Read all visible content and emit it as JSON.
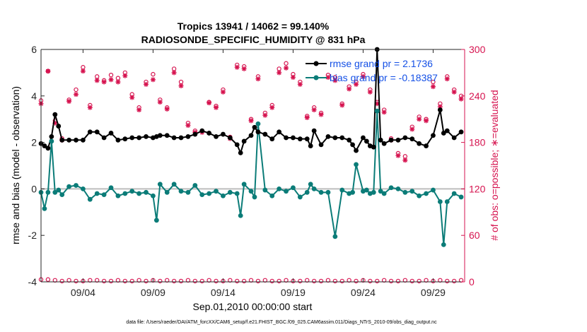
{
  "chart_data": {
    "type": "line",
    "title_line1": "Tropics 13941 / 14062 = 99.140%",
    "title_line2": "RADIOSONDE_SPECIFIC_HUMIDITY @ 831 hPa",
    "xlabel": "Sep.01,2010 00:00:00 start",
    "ylabel_left": "rmse and bias (model - observation)",
    "ylabel_right": "# of obs: o=possible; ∗=evaluated",
    "footnote": "data file: /Users/raeder/DAI/ATM_forcXX/CAM6_setup/f.e21.FHIST_BGC.f09_025.CAM6assim.011/Diags_NTrS_2010-09/obs_diag_output.nc",
    "x_tick_labels": [
      "09/04",
      "09/09",
      "09/14",
      "09/19",
      "09/24",
      "09/29"
    ],
    "x_tick_values": [
      4,
      9,
      14,
      19,
      24,
      29
    ],
    "xlim": [
      1.0,
      31.25
    ],
    "ylim_left": [
      -4,
      6
    ],
    "y_ticks_left": [
      -4,
      -2,
      0,
      2,
      4,
      6
    ],
    "ylim_right": [
      0,
      300
    ],
    "y_ticks_right": [
      0,
      60,
      120,
      180,
      240,
      300
    ],
    "y_tick_labels_left": [
      "-4",
      "-2",
      "0",
      "2",
      "4",
      "6"
    ],
    "y_tick_labels_right": [
      "0",
      "60",
      "120",
      "180",
      "240",
      "300"
    ],
    "colors": {
      "rmse": "#000000",
      "bias": "#0b7c78",
      "obs": "#d6134f",
      "zero_line": "#bdbdbd",
      "legend_text": "#1450e6"
    },
    "series": [
      {
        "name": "rmse grand pr = 2.1736",
        "axis": "left",
        "x": [
          1.0,
          1.25,
          1.5,
          1.75,
          2.0,
          2.25,
          2.5,
          3.0,
          3.5,
          4.0,
          4.5,
          5.0,
          5.5,
          6.0,
          6.5,
          7.0,
          7.5,
          8.0,
          8.5,
          9.0,
          9.25,
          9.5,
          10.0,
          10.5,
          11.0,
          11.5,
          12.0,
          12.5,
          13.0,
          13.5,
          14.0,
          14.5,
          15.0,
          15.25,
          15.5,
          16.0,
          16.25,
          16.5,
          17.0,
          17.5,
          18.0,
          18.5,
          19.0,
          19.5,
          20.0,
          20.25,
          20.5,
          21.0,
          21.5,
          22.0,
          22.5,
          23.0,
          23.25,
          23.5,
          24.0,
          24.25,
          24.5,
          24.75,
          25.0,
          25.25,
          25.5,
          26.0,
          26.5,
          27.0,
          27.5,
          28.0,
          28.5,
          29.0,
          29.5,
          29.75,
          30.0,
          30.5,
          31.0
        ],
        "y": [
          1.95,
          1.85,
          1.75,
          2.25,
          3.2,
          2.7,
          2.1,
          2.1,
          2.1,
          2.1,
          2.45,
          2.45,
          2.2,
          2.4,
          2.1,
          2.15,
          2.2,
          2.2,
          2.25,
          2.2,
          2.25,
          2.3,
          2.3,
          2.2,
          2.2,
          2.25,
          2.35,
          2.5,
          2.4,
          2.25,
          2.35,
          2.2,
          1.9,
          1.55,
          2.05,
          2.3,
          2.65,
          2.45,
          2.35,
          2.15,
          2.45,
          2.2,
          2.2,
          2.15,
          2.15,
          1.85,
          2.5,
          1.9,
          2.25,
          2.2,
          2.2,
          2.1,
          1.9,
          1.65,
          2.2,
          2.05,
          1.85,
          1.8,
          6.0,
          2.1,
          1.95,
          2.1,
          2.1,
          2.2,
          2.15,
          1.95,
          1.85,
          2.3,
          3.4,
          2.4,
          2.5,
          2.2,
          2.45
        ]
      },
      {
        "name": "bias grand pr = -0.18387",
        "axis": "left",
        "x": [
          1.0,
          1.25,
          1.5,
          1.75,
          2.0,
          2.25,
          2.5,
          3.0,
          3.5,
          4.0,
          4.5,
          5.0,
          5.5,
          6.0,
          6.5,
          7.0,
          7.5,
          8.0,
          8.5,
          9.0,
          9.25,
          9.5,
          10.0,
          10.5,
          11.0,
          11.5,
          12.0,
          12.5,
          13.0,
          13.5,
          14.0,
          14.5,
          15.0,
          15.25,
          15.5,
          16.0,
          16.25,
          16.5,
          17.0,
          17.5,
          18.0,
          18.5,
          19.0,
          19.5,
          20.0,
          20.25,
          20.5,
          21.0,
          21.5,
          22.0,
          22.5,
          23.0,
          23.25,
          23.5,
          24.0,
          24.25,
          24.5,
          24.75,
          25.0,
          25.25,
          25.5,
          26.0,
          26.5,
          27.0,
          27.5,
          28.0,
          28.5,
          29.0,
          29.5,
          29.75,
          30.0,
          30.5,
          31.0
        ],
        "y": [
          -0.15,
          -0.85,
          -0.15,
          2.05,
          -0.15,
          -0.05,
          -0.25,
          0.1,
          0.15,
          0.0,
          -0.45,
          -0.2,
          -0.25,
          0.05,
          -0.3,
          -0.2,
          -0.1,
          -0.2,
          -0.15,
          -0.3,
          -1.35,
          0.2,
          -0.15,
          0.2,
          -0.1,
          -0.15,
          0.15,
          -0.25,
          -0.2,
          -0.1,
          -0.3,
          -0.15,
          -0.2,
          -1.15,
          0.2,
          -0.1,
          -0.35,
          2.8,
          -0.05,
          -0.3,
          0.0,
          -0.1,
          0.05,
          -0.35,
          -0.15,
          0.2,
          0.0,
          -0.15,
          -0.15,
          -2.05,
          -0.05,
          -0.2,
          -0.15,
          1.05,
          -0.1,
          -0.05,
          -0.2,
          -0.15,
          3.35,
          -0.1,
          -0.2,
          0.05,
          0.0,
          -0.15,
          -0.1,
          -0.3,
          -0.2,
          -0.05,
          -0.55,
          -2.4,
          -0.55,
          -0.2,
          -0.35
        ]
      },
      {
        "name": "obs possible",
        "axis": "right",
        "marker": "circle",
        "x": [
          1.0,
          1.5,
          2.0,
          2.5,
          3.0,
          3.5,
          4.0,
          4.5,
          5.0,
          5.5,
          6.0,
          6.5,
          7.0,
          7.5,
          8.0,
          8.5,
          9.0,
          9.5,
          10.0,
          10.5,
          11.0,
          11.5,
          12.0,
          12.5,
          13.0,
          13.5,
          14.0,
          14.5,
          15.0,
          15.5,
          16.0,
          16.5,
          17.0,
          17.5,
          18.0,
          18.5,
          19.0,
          19.5,
          20.0,
          20.5,
          21.0,
          21.5,
          22.0,
          22.5,
          23.0,
          23.5,
          24.0,
          24.5,
          25.0,
          25.5,
          26.0,
          26.5,
          27.0,
          27.5,
          28.0,
          28.5,
          29.0,
          29.5,
          30.0,
          30.5,
          31.0
        ],
        "y": [
          234,
          272,
          208,
          185,
          235,
          248,
          277,
          228,
          265,
          260,
          267,
          263,
          270,
          242,
          225,
          258,
          268,
          235,
          225,
          275,
          258,
          205,
          195,
          195,
          232,
          227,
          248,
          187,
          280,
          278,
          210,
          265,
          218,
          228,
          275,
          282,
          268,
          258,
          214,
          225,
          218,
          267,
          264,
          230,
          252,
          258,
          268,
          248,
          232,
          222,
          185,
          166,
          162,
          200,
          213,
          210,
          258,
          230,
          265,
          248,
          240
        ]
      },
      {
        "name": "obs evaluated",
        "axis": "right",
        "marker": "asterisk",
        "x": [
          1.0,
          1.5,
          2.0,
          2.5,
          3.0,
          3.5,
          4.0,
          4.5,
          5.0,
          5.5,
          6.0,
          6.5,
          7.0,
          7.5,
          8.0,
          8.5,
          9.0,
          9.5,
          10.0,
          10.5,
          11.0,
          11.5,
          12.0,
          12.5,
          13.0,
          13.5,
          14.0,
          14.5,
          15.0,
          15.5,
          16.0,
          16.5,
          17.0,
          17.5,
          18.0,
          18.5,
          19.0,
          19.5,
          20.0,
          20.5,
          21.0,
          21.5,
          22.0,
          22.5,
          23.0,
          23.5,
          24.0,
          24.5,
          25.0,
          25.5,
          26.0,
          26.5,
          27.0,
          27.5,
          28.0,
          28.5,
          29.0,
          29.5,
          30.0,
          30.5,
          31.0
        ],
        "y": [
          230,
          272,
          205,
          183,
          233,
          242,
          272,
          225,
          260,
          258,
          261,
          258,
          266,
          238,
          222,
          255,
          261,
          232,
          223,
          270,
          253,
          202,
          193,
          193,
          231,
          225,
          245,
          185,
          277,
          275,
          208,
          262,
          215,
          225,
          270,
          276,
          264,
          255,
          212,
          222,
          216,
          264,
          260,
          228,
          249,
          255,
          265,
          245,
          230,
          219,
          183,
          163,
          157,
          197,
          210,
          208,
          252,
          226,
          262,
          245,
          236
        ]
      },
      {
        "name": "obs possible bottom",
        "axis": "right",
        "marker": "circle",
        "x": [
          1.0,
          1.5,
          2.0,
          2.5,
          3.0,
          3.5,
          4.0,
          4.5,
          5.0,
          5.5,
          6.0,
          6.5,
          7.0,
          7.5,
          8.0,
          8.5,
          9.0,
          9.5,
          10.0,
          10.5,
          11.0,
          11.5,
          12.0,
          12.5,
          13.0,
          13.5,
          14.0,
          14.5,
          15.0,
          15.5,
          16.0,
          16.5,
          17.0,
          17.5,
          18.0,
          18.5,
          19.0,
          19.5,
          20.0,
          20.5,
          21.0,
          21.5,
          22.0,
          22.5,
          23.0,
          23.5,
          24.0,
          24.5,
          25.0,
          25.5,
          26.0,
          26.5,
          27.0,
          27.5,
          28.0,
          28.5,
          29.0,
          29.5,
          30.0,
          30.5,
          31.0
        ],
        "y": [
          3,
          3,
          2,
          1,
          2,
          1,
          1,
          2,
          2,
          1,
          1,
          2,
          1,
          1,
          2,
          1,
          2,
          1,
          2,
          1,
          1,
          2,
          1,
          1,
          2,
          1,
          1,
          2,
          1,
          1,
          2,
          1,
          2,
          1,
          1,
          2,
          1,
          1,
          2,
          1,
          1,
          2,
          1,
          1,
          2,
          1,
          2,
          1,
          1,
          2,
          1,
          1,
          2,
          1,
          1,
          2,
          1,
          2,
          1,
          1,
          2
        ]
      }
    ],
    "legend": [
      "rmse grand pr = 2.1736",
      "bias grand pr = -0.18387"
    ],
    "legend_position": "top-right",
    "grid": false
  }
}
